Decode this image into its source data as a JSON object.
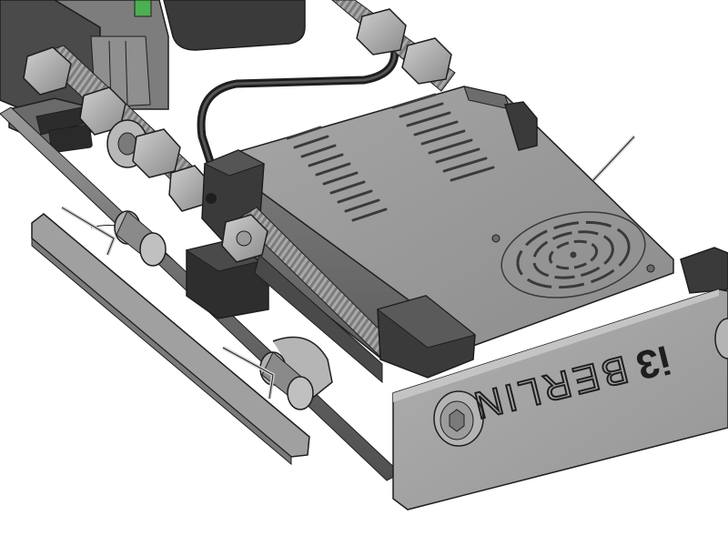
{
  "diagram": {
    "brand_plate": {
      "logo_text": "i3",
      "label_text": "BERLIN"
    },
    "colors": {
      "background": "#ffffff",
      "psu_body": "#8f8f8f",
      "psu_top": "#9c9c9c",
      "plate": "#a3a3a3",
      "dark_part": "#3a3a3a",
      "rod": "#6e6e6e",
      "outline": "#1e1e1e"
    }
  }
}
